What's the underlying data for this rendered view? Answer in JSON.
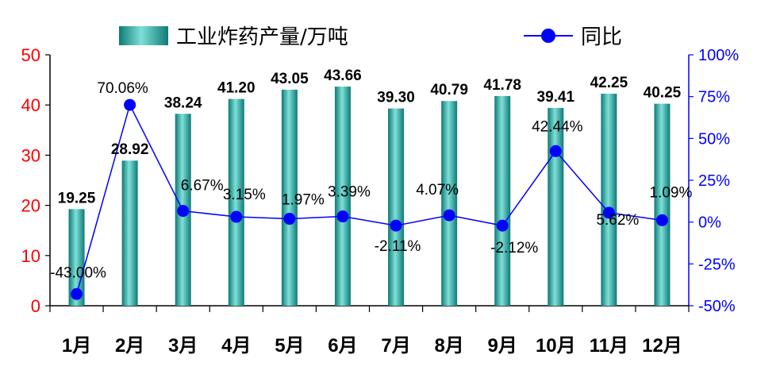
{
  "chart_data": {
    "type": "bar",
    "categories": [
      "1月",
      "2月",
      "3月",
      "4月",
      "5月",
      "6月",
      "7月",
      "8月",
      "9月",
      "10月",
      "11月",
      "12月"
    ],
    "series": [
      {
        "name": "工业炸药产量/万吨",
        "kind": "bar",
        "axis": "left",
        "values": [
          19.25,
          28.92,
          38.24,
          41.2,
          43.05,
          43.66,
          39.3,
          40.79,
          41.78,
          39.41,
          42.25,
          40.25
        ],
        "labels": [
          "19.25",
          "28.92",
          "38.24",
          "41.20",
          "43.05",
          "43.66",
          "39.30",
          "40.79",
          "41.78",
          "39.41",
          "42.25",
          "40.25"
        ]
      },
      {
        "name": "同比",
        "kind": "line",
        "axis": "right",
        "values": [
          -43.0,
          70.06,
          6.67,
          3.15,
          1.97,
          3.39,
          -2.11,
          4.07,
          -2.12,
          42.44,
          5.62,
          1.09
        ],
        "labels": [
          "-43.00%",
          "70.06%",
          "6.67%",
          "3.15%",
          "1.97%",
          "3.39%",
          "-2.11%",
          "4.07%",
          "-2.12%",
          "42.44%",
          "5.62%",
          "1.09%"
        ]
      }
    ],
    "y_left": {
      "ylim": [
        0,
        50
      ],
      "ticks": [
        "0",
        "10",
        "20",
        "30",
        "40",
        "50"
      ]
    },
    "y_right": {
      "ylim": [
        -50,
        100
      ],
      "ticks": [
        "-50%",
        "-25%",
        "0%",
        "25%",
        "50%",
        "75%",
        "100%"
      ]
    },
    "legend": "top",
    "grid": false,
    "colors": {
      "bar_dark": "#0e7a76",
      "bar_light": "#7fe0d8",
      "line": "#0000ff",
      "marker": "#0000ff",
      "left_axis": "#ff0000",
      "right_axis": "#0000ff"
    }
  }
}
